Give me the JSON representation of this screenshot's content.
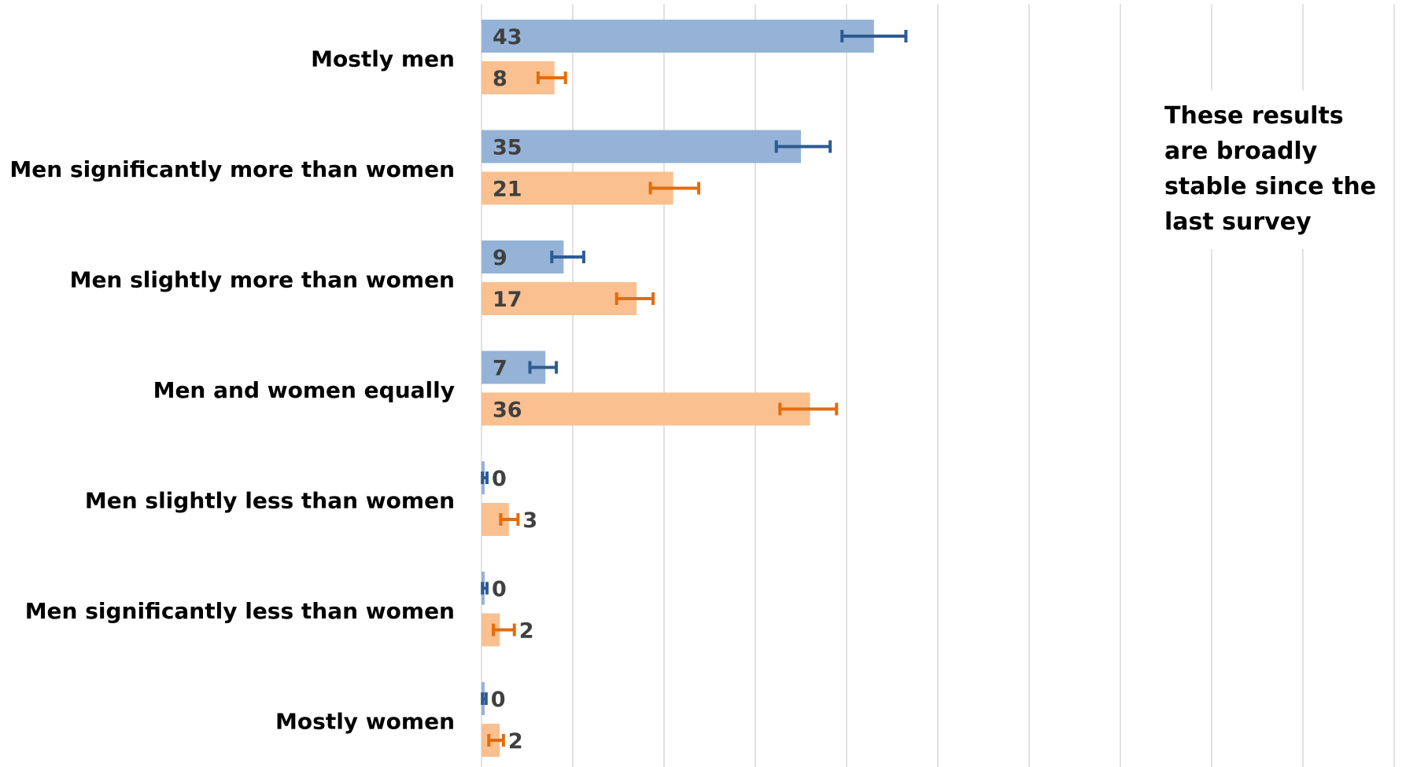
{
  "chart_data": {
    "type": "bar",
    "orientation": "horizontal",
    "categories": [
      "Mostly men",
      "Men significantly more than women",
      "Men slightly more than women",
      "Men and women equally",
      "Men slightly less than women",
      "Men significantly less than women",
      "Mostly women"
    ],
    "series": [
      {
        "color": "#95b3d7",
        "error_color": "#2e5b93",
        "values": [
          43,
          35,
          9,
          7,
          0,
          0,
          0
        ],
        "error_low": [
          39.5,
          32.3,
          7.7,
          5.3,
          0.1,
          0.1,
          0.1
        ],
        "error_high": [
          46.5,
          38.2,
          11.2,
          8.2,
          0.6,
          0.6,
          0.5
        ]
      },
      {
        "color": "#fac090",
        "error_color": "#e46c0a",
        "values": [
          8,
          21,
          17,
          36,
          3,
          2,
          2
        ],
        "error_low": [
          6.2,
          18.5,
          14.8,
          32.7,
          2.1,
          1.3,
          0.8
        ],
        "error_high": [
          9.2,
          23.8,
          18.8,
          38.9,
          4.0,
          3.6,
          2.4
        ]
      }
    ],
    "xlim": [
      0,
      100
    ],
    "x_gridline_step": 10,
    "grid": true,
    "legend": "none",
    "annotation": "These results are broadly stable since the last survey"
  }
}
